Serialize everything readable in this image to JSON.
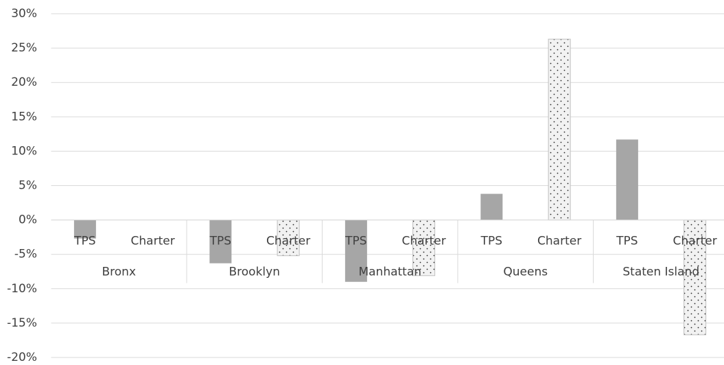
{
  "chart_data": {
    "type": "bar",
    "categories": [
      "Bronx",
      "Brooklyn",
      "Manhattan",
      "Queens",
      "Staten Island"
    ],
    "series": [
      {
        "name": "TPS",
        "color": "#a6a6a6",
        "values": [
          -2.7,
          -6.3,
          -9.0,
          3.8,
          11.7
        ]
      },
      {
        "name": "Charter",
        "color": "#f2f2f2",
        "pattern": "dots",
        "values": [
          null,
          -5.2,
          -8.1,
          26.3,
          -16.7
        ]
      }
    ],
    "ylim": [
      -20,
      30
    ],
    "yticks": [
      {
        "value": -20,
        "label": "-20%"
      },
      {
        "value": -15,
        "label": "-15%"
      },
      {
        "value": -10,
        "label": "-10%"
      },
      {
        "value": -5,
        "label": "-5%"
      },
      {
        "value": 0,
        "label": "0%"
      },
      {
        "value": 5,
        "label": "5%"
      },
      {
        "value": 10,
        "label": "10%"
      },
      {
        "value": 15,
        "label": "15%"
      },
      {
        "value": 20,
        "label": "20%"
      },
      {
        "value": 25,
        "label": "25%"
      },
      {
        "value": 30,
        "label": "30%"
      }
    ],
    "grid": true
  }
}
